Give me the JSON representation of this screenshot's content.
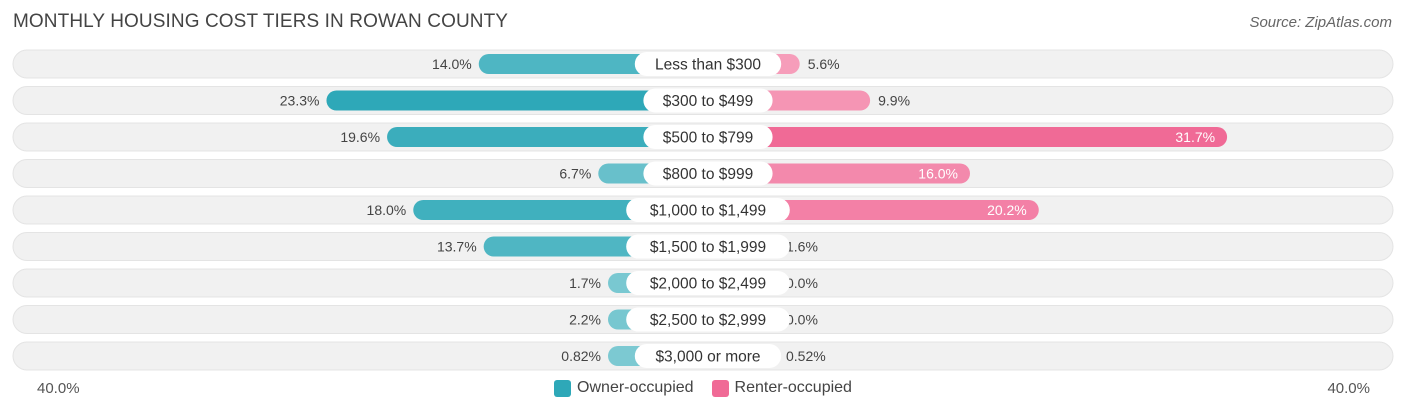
{
  "title": "MONTHLY HOUSING COST TIERS IN ROWAN COUNTY",
  "source": "Source: ZipAtlas.com",
  "colors": {
    "owner": "#2ea8b8",
    "renter": "#f06a96",
    "owner_light": "#7fcad3",
    "renter_light": "#f7a8c2",
    "row_bg": "#f1f1f1"
  },
  "chart_data": {
    "type": "bar",
    "orientation": "horizontal-diverging",
    "title": "MONTHLY HOUSING COST TIERS IN ROWAN COUNTY",
    "categories": [
      "Less than $300",
      "$300 to $499",
      "$500 to $799",
      "$800 to $999",
      "$1,000 to $1,499",
      "$1,500 to $1,999",
      "$2,000 to $2,499",
      "$2,500 to $2,999",
      "$3,000 or more"
    ],
    "series": [
      {
        "name": "Owner-occupied",
        "values": [
          14.0,
          23.3,
          19.6,
          6.7,
          18.0,
          13.7,
          1.7,
          2.2,
          0.82
        ],
        "labels": [
          "14.0%",
          "23.3%",
          "19.6%",
          "6.7%",
          "18.0%",
          "13.7%",
          "1.7%",
          "2.2%",
          "0.82%"
        ]
      },
      {
        "name": "Renter-occupied",
        "values": [
          5.6,
          9.9,
          31.7,
          16.0,
          20.2,
          1.6,
          0.0,
          0.0,
          0.52
        ],
        "labels": [
          "5.6%",
          "9.9%",
          "31.7%",
          "16.0%",
          "20.2%",
          "1.6%",
          "0.0%",
          "0.0%",
          "0.52%"
        ]
      }
    ],
    "axis": {
      "min_label": "40.0%",
      "max_label": "40.0%",
      "range": [
        0,
        40
      ]
    },
    "legend": [
      "Owner-occupied",
      "Renter-occupied"
    ],
    "legend_position": "bottom-center"
  }
}
